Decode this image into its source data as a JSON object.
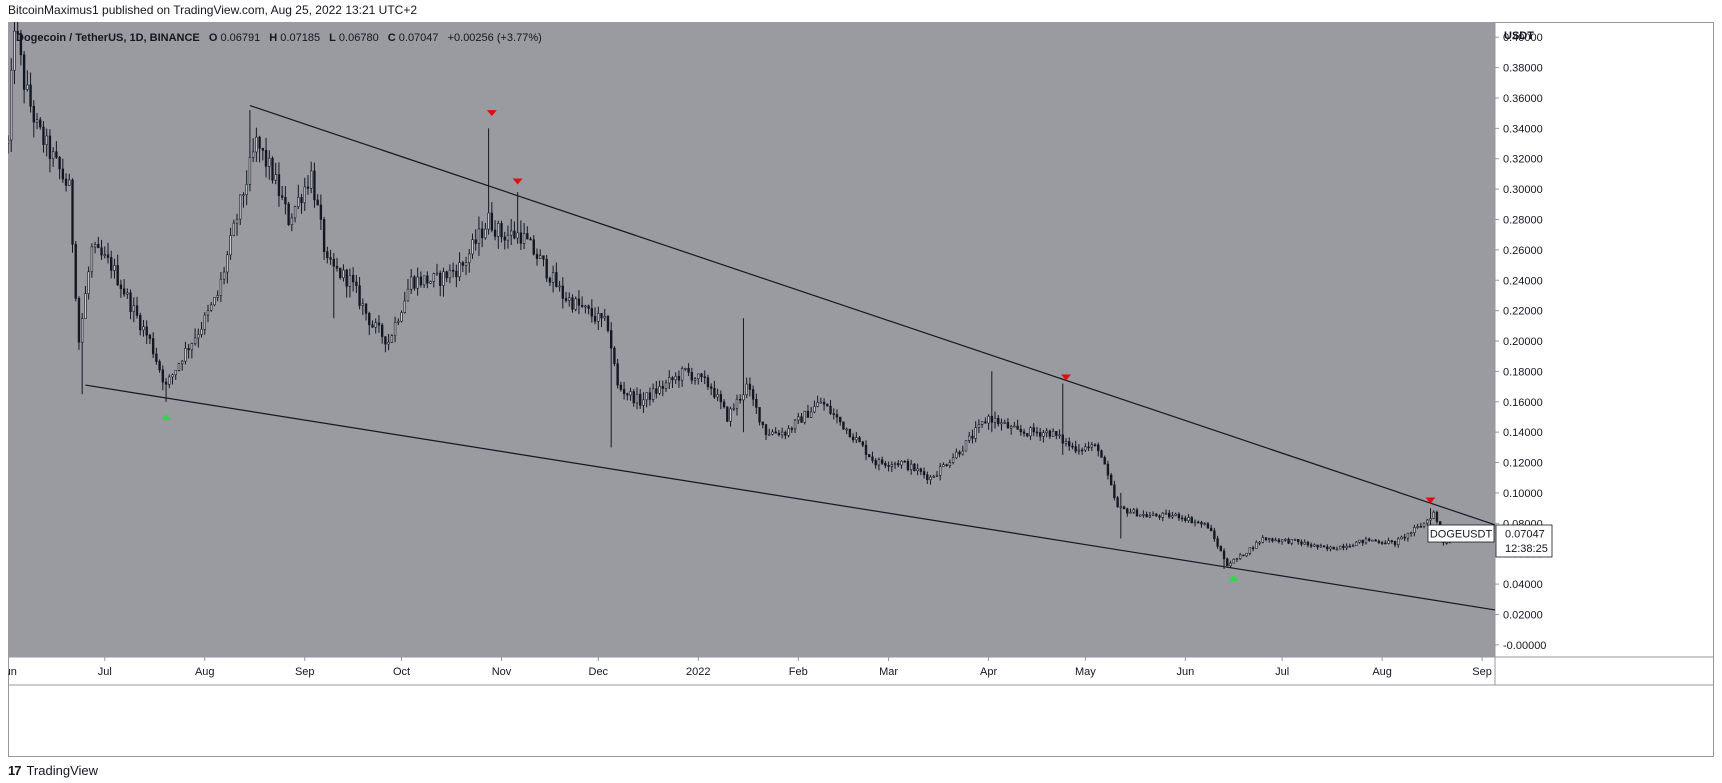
{
  "header": {
    "publisher_line": "BitcoinMaximus1 published on TradingView.com, Aug 25, 2022 13:21 UTC+2"
  },
  "footer": {
    "brand": "TradingView",
    "logo_glyph": "17"
  },
  "legend": {
    "symbol": "Dogecoin / TetherUS, 1D, BINANCE",
    "o_label": "O",
    "o_value": "0.06791",
    "h_label": "H",
    "h_value": "0.07185",
    "l_label": "L",
    "l_value": "0.06780",
    "c_label": "C",
    "c_value": "0.07047",
    "change": "+0.00256 (+3.77%)"
  },
  "price_tag": {
    "ticker": "DOGEUSDT",
    "price": "0.07047",
    "countdown": "12:38:25"
  },
  "colors": {
    "plot_bg": "#999ba1",
    "candle": "#131722",
    "arrow_down": "#e50b0b",
    "arrow_up": "#2dd94a",
    "trendline": "#131722"
  },
  "chart_data": {
    "type": "candlestick",
    "currency_label": "USDT",
    "x_ticks": [
      "Jun",
      "Jul",
      "Aug",
      "Sep",
      "Oct",
      "Nov",
      "Dec",
      "2022",
      "Feb",
      "Mar",
      "Apr",
      "May",
      "Jun",
      "Jul",
      "Aug",
      "Sep"
    ],
    "x_range": [
      "2021-06-01",
      "2022-09-05"
    ],
    "y_ticks": [
      "0.40000",
      "0.38000",
      "0.36000",
      "0.34000",
      "0.32000",
      "0.30000",
      "0.28000",
      "0.26000",
      "0.24000",
      "0.22000",
      "0.20000",
      "0.18000",
      "0.16000",
      "0.14000",
      "0.12000",
      "0.10000",
      "0.08000",
      "0.06000",
      "0.04000",
      "0.02000",
      "-0.00000"
    ],
    "ylim": [
      -0.008,
      0.41
    ],
    "last_close": 0.07047,
    "price_path": [
      [
        "2021-06-01",
        0.33
      ],
      [
        "2021-06-03",
        0.41
      ],
      [
        "2021-06-06",
        0.37
      ],
      [
        "2021-06-10",
        0.34
      ],
      [
        "2021-06-15",
        0.32
      ],
      [
        "2021-06-20",
        0.3
      ],
      [
        "2021-06-23",
        0.2
      ],
      [
        "2021-06-27",
        0.26
      ],
      [
        "2021-07-03",
        0.25
      ],
      [
        "2021-07-10",
        0.22
      ],
      [
        "2021-07-15",
        0.2
      ],
      [
        "2021-07-20",
        0.17
      ],
      [
        "2021-07-25",
        0.19
      ],
      [
        "2021-07-31",
        0.21
      ],
      [
        "2021-08-05",
        0.23
      ],
      [
        "2021-08-12",
        0.29
      ],
      [
        "2021-08-17",
        0.33
      ],
      [
        "2021-08-22",
        0.31
      ],
      [
        "2021-08-27",
        0.28
      ],
      [
        "2021-09-03",
        0.31
      ],
      [
        "2021-09-08",
        0.25
      ],
      [
        "2021-09-15",
        0.24
      ],
      [
        "2021-09-22",
        0.21
      ],
      [
        "2021-09-27",
        0.2
      ],
      [
        "2021-10-04",
        0.24
      ],
      [
        "2021-10-12",
        0.24
      ],
      [
        "2021-10-20",
        0.25
      ],
      [
        "2021-10-28",
        0.28
      ],
      [
        "2021-11-01",
        0.27
      ],
      [
        "2021-11-07",
        0.27
      ],
      [
        "2021-11-14",
        0.25
      ],
      [
        "2021-11-20",
        0.23
      ],
      [
        "2021-11-27",
        0.22
      ],
      [
        "2021-12-04",
        0.21
      ],
      [
        "2021-12-07",
        0.17
      ],
      [
        "2021-12-14",
        0.16
      ],
      [
        "2021-12-21",
        0.17
      ],
      [
        "2021-12-28",
        0.18
      ],
      [
        "2022-01-05",
        0.17
      ],
      [
        "2022-01-10",
        0.15
      ],
      [
        "2022-01-16",
        0.17
      ],
      [
        "2022-01-22",
        0.14
      ],
      [
        "2022-01-28",
        0.14
      ],
      [
        "2022-02-08",
        0.16
      ],
      [
        "2022-02-17",
        0.14
      ],
      [
        "2022-02-25",
        0.12
      ],
      [
        "2022-03-05",
        0.12
      ],
      [
        "2022-03-14",
        0.11
      ],
      [
        "2022-03-24",
        0.13
      ],
      [
        "2022-04-01",
        0.15
      ],
      [
        "2022-04-10",
        0.14
      ],
      [
        "2022-04-20",
        0.14
      ],
      [
        "2022-04-27",
        0.13
      ],
      [
        "2022-05-05",
        0.13
      ],
      [
        "2022-05-11",
        0.09
      ],
      [
        "2022-05-20",
        0.085
      ],
      [
        "2022-05-30",
        0.085
      ],
      [
        "2022-06-08",
        0.078
      ],
      [
        "2022-06-14",
        0.053
      ],
      [
        "2022-06-18",
        0.058
      ],
      [
        "2022-06-25",
        0.07
      ],
      [
        "2022-07-05",
        0.068
      ],
      [
        "2022-07-15",
        0.063
      ],
      [
        "2022-07-28",
        0.069
      ],
      [
        "2022-08-05",
        0.067
      ],
      [
        "2022-08-14",
        0.08
      ],
      [
        "2022-08-17",
        0.087
      ],
      [
        "2022-08-20",
        0.068
      ],
      [
        "2022-08-25",
        0.07047
      ]
    ],
    "spikes": [
      [
        "2021-06-24",
        0.165,
        0.2
      ],
      [
        "2021-07-20",
        0.16,
        0.175
      ],
      [
        "2021-08-15",
        0.3,
        0.352
      ],
      [
        "2021-09-10",
        0.215,
        0.25
      ],
      [
        "2021-10-28",
        0.27,
        0.34
      ],
      [
        "2021-11-06",
        0.27,
        0.298
      ],
      [
        "2021-12-05",
        0.13,
        0.19
      ],
      [
        "2022-01-15",
        0.14,
        0.215
      ],
      [
        "2022-04-02",
        0.14,
        0.18
      ],
      [
        "2022-04-24",
        0.125,
        0.172
      ],
      [
        "2022-05-12",
        0.07,
        0.1
      ],
      [
        "2022-06-13",
        0.05,
        0.06
      ],
      [
        "2022-08-16",
        0.075,
        0.09
      ]
    ],
    "trendlines": [
      {
        "from": [
          "2021-08-15",
          0.355
        ],
        "to": [
          "2022-09-05",
          0.079
        ]
      },
      {
        "from": [
          "2021-06-25",
          0.171
        ],
        "to": [
          "2022-09-05",
          0.023
        ]
      }
    ],
    "markers": [
      {
        "type": "down",
        "date": "2021-10-29",
        "price": 0.35
      },
      {
        "type": "down",
        "date": "2021-11-06",
        "price": 0.305
      },
      {
        "type": "down",
        "date": "2022-04-25",
        "price": 0.176
      },
      {
        "type": "down",
        "date": "2022-08-16",
        "price": 0.095
      },
      {
        "type": "up",
        "date": "2021-07-20",
        "price": 0.15
      },
      {
        "type": "up",
        "date": "2022-06-16",
        "price": 0.044
      }
    ]
  }
}
